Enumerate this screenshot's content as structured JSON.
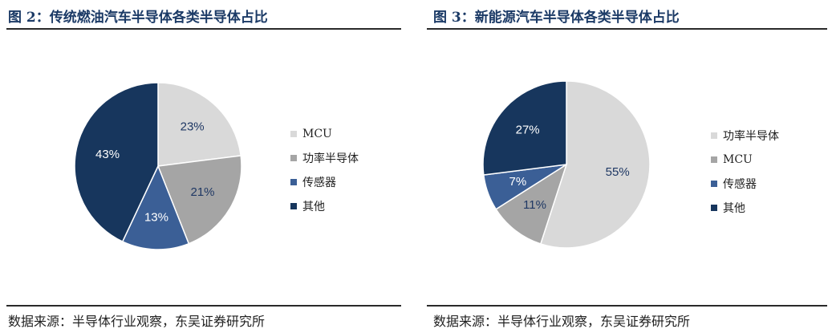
{
  "figures": [
    {
      "title": "图 2：传统燃油汽车半导体各类半导体占比",
      "source": "数据来源：半导体行业观察，东吴证券研究所"
    },
    {
      "title": "图 3：新能源汽车半导体各类半导体占比",
      "source": "数据来源：半导体行业观察，东吴证券研究所"
    }
  ],
  "chart_data": [
    {
      "type": "pie",
      "title": "图 2：传统燃油汽车半导体各类半导体占比",
      "slices": [
        {
          "label": "MCU",
          "value": 23,
          "display": "23%",
          "color": "#d9d9d9",
          "text_color": "#1f3864"
        },
        {
          "label": "功率半导体",
          "value": 21,
          "display": "21%",
          "color": "#a5a5a5",
          "text_color": "#1f3864"
        },
        {
          "label": "传感器",
          "value": 13,
          "display": "13%",
          "color": "#3b5f96",
          "text_color": "#ffffff"
        },
        {
          "label": "其他",
          "value": 43,
          "display": "43%",
          "color": "#17365d",
          "text_color": "#ffffff"
        }
      ],
      "legend": [
        "MCU",
        "功率半导体",
        "传感器",
        "其他"
      ],
      "legend_placement": "right"
    },
    {
      "type": "pie",
      "title": "图 3：新能源汽车半导体各类半导体占比",
      "slices": [
        {
          "label": "功率半导体",
          "value": 55,
          "display": "55%",
          "color": "#d9d9d9",
          "text_color": "#1f3864"
        },
        {
          "label": "MCU",
          "value": 11,
          "display": "11%",
          "color": "#a5a5a5",
          "text_color": "#1f3864"
        },
        {
          "label": "传感器",
          "value": 7,
          "display": "7%",
          "color": "#3b5f96",
          "text_color": "#ffffff"
        },
        {
          "label": "其他",
          "value": 27,
          "display": "27%",
          "color": "#17365d",
          "text_color": "#ffffff"
        }
      ],
      "legend": [
        "功率半导体",
        "MCU",
        "传感器",
        "其他"
      ],
      "legend_placement": "right"
    }
  ]
}
